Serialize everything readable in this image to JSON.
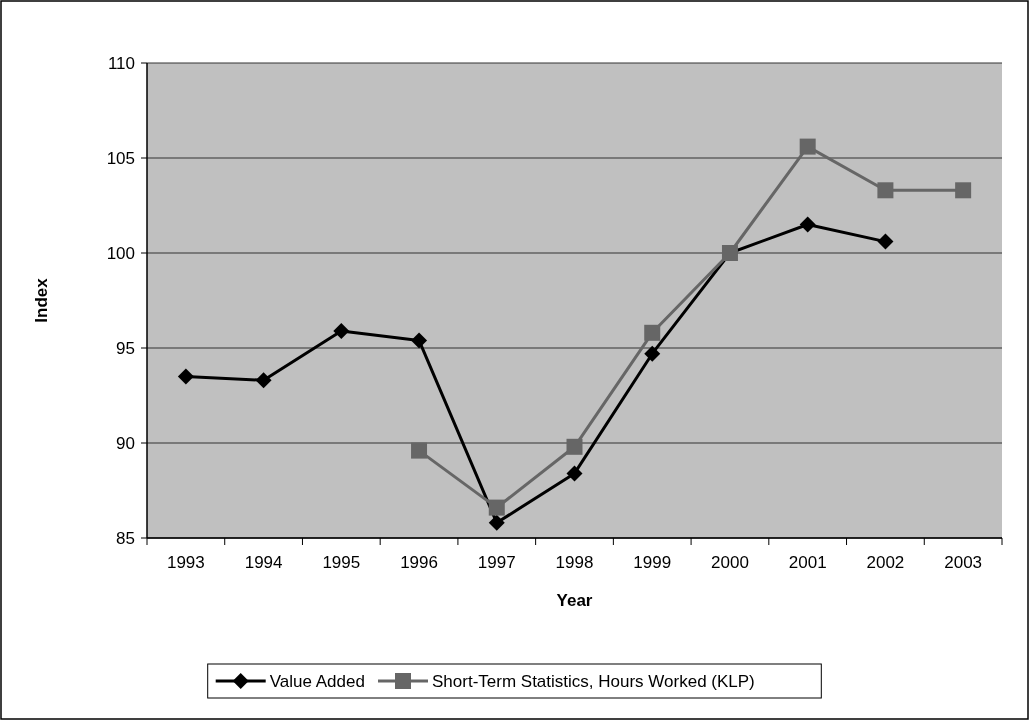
{
  "chart_data": {
    "type": "line",
    "xlabel": "Year",
    "ylabel": "Index",
    "categories": [
      "1993",
      "1994",
      "1995",
      "1996",
      "1997",
      "1998",
      "1999",
      "2000",
      "2001",
      "2002",
      "2003"
    ],
    "series": [
      {
        "name": "Value Added",
        "color": "#000000",
        "marker": "diamond",
        "values": [
          93.5,
          93.3,
          95.9,
          95.4,
          85.8,
          88.4,
          94.7,
          100,
          101.5,
          100.6,
          null
        ]
      },
      {
        "name": "Short-Term Statistics, Hours Worked (KLP)",
        "color": "#666666",
        "marker": "square",
        "values": [
          null,
          null,
          null,
          89.6,
          86.6,
          89.8,
          95.8,
          100,
          105.6,
          103.3,
          103.3
        ]
      }
    ],
    "ylim": [
      85,
      110
    ],
    "yticks": [
      85,
      90,
      95,
      100,
      105,
      110
    ],
    "grid": "y",
    "legend": "bottom",
    "line_style": "solid"
  }
}
